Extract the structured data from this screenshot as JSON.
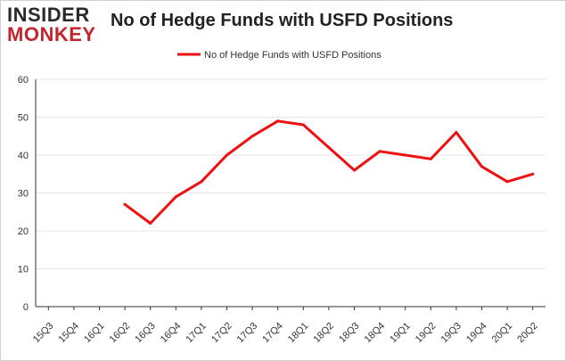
{
  "logo": {
    "line1": "INSIDER",
    "line2": "MONKEY"
  },
  "colors": {
    "series": "#ee1111",
    "grid": "#e6e6e6",
    "axis": "#333333",
    "logo_red": "#c0272d"
  },
  "chart_data": {
    "type": "line",
    "title": "No of Hedge Funds with USFD Positions",
    "xlabel": "",
    "ylabel": "",
    "ylim": [
      0,
      60
    ],
    "yticks": [
      0,
      10,
      20,
      30,
      40,
      50,
      60
    ],
    "grid": "horizontal",
    "legend_position": "top-center",
    "categories": [
      "15Q3",
      "15Q4",
      "16Q1",
      "16Q2",
      "16Q3",
      "16Q4",
      "17Q1",
      "17Q2",
      "17Q3",
      "17Q4",
      "18Q1",
      "18Q2",
      "18Q3",
      "18Q4",
      "19Q1",
      "19Q2",
      "19Q3",
      "19Q4",
      "20Q1",
      "20Q2"
    ],
    "series": [
      {
        "name": "No of Hedge Funds with USFD Positions",
        "values": [
          null,
          null,
          null,
          27,
          22,
          29,
          33,
          40,
          45,
          49,
          48,
          42,
          36,
          41,
          40,
          39,
          46,
          37,
          33,
          35
        ]
      }
    ]
  }
}
